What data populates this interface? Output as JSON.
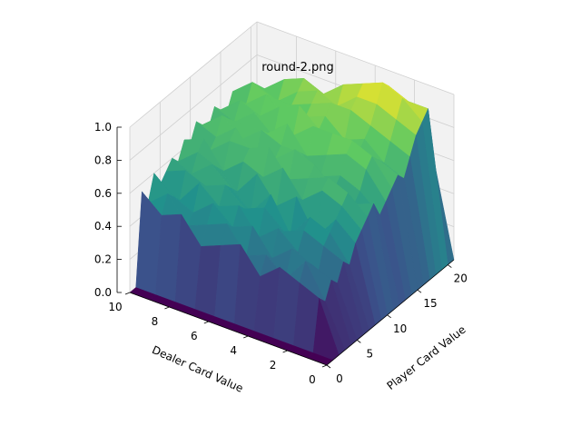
{
  "chart_data": {
    "type": "surface",
    "title": "round-2.png",
    "xlabel": "Player Card Value",
    "ylabel": "Dealer Card Value",
    "zlabel": "",
    "xlim": [
      0,
      21
    ],
    "ylim": [
      0,
      10
    ],
    "zlim": [
      0,
      1
    ],
    "x_ticks": [
      "0",
      "5",
      "10",
      "15",
      "20"
    ],
    "y_ticks": [
      "0",
      "2",
      "4",
      "6",
      "8",
      "10"
    ],
    "z_ticks": [
      "0.0",
      "0.2",
      "0.4",
      "0.6",
      "0.8",
      "1.0"
    ],
    "colormap": "viridis",
    "grid": true,
    "rows_dealer": [
      0,
      1,
      2,
      3,
      4,
      5,
      6,
      7,
      8,
      9,
      10
    ],
    "cols_player": [
      0,
      1,
      2,
      3,
      4,
      5,
      6,
      7,
      8,
      9,
      10,
      11,
      12,
      13,
      14,
      15,
      16,
      17,
      18,
      19,
      20,
      21
    ],
    "z": [
      [
        0,
        0,
        0,
        0,
        0,
        0,
        0,
        0,
        0,
        0,
        0,
        0,
        0,
        0,
        0,
        0,
        0,
        0,
        0,
        0,
        0,
        0
      ],
      [
        0,
        0,
        0.3,
        0.25,
        0.35,
        0.3,
        0.4,
        0.35,
        0.45,
        0.5,
        0.55,
        0.6,
        0.5,
        0.55,
        0.6,
        0.65,
        0.6,
        0.7,
        0.8,
        0.85,
        0.9,
        0.55
      ],
      [
        0,
        0,
        0.35,
        0.45,
        0.4,
        0.3,
        0.45,
        0.5,
        0.55,
        0.6,
        0.65,
        0.55,
        0.6,
        0.7,
        0.75,
        0.7,
        0.65,
        0.75,
        0.85,
        0.95,
        0.9,
        0.6
      ],
      [
        0,
        0,
        0.4,
        0.3,
        0.45,
        0.4,
        0.5,
        0.55,
        0.4,
        0.65,
        0.7,
        0.6,
        0.65,
        0.75,
        0.8,
        0.7,
        0.75,
        0.8,
        0.9,
        1.0,
        0.95,
        0.65
      ],
      [
        0,
        0,
        0.3,
        0.4,
        0.35,
        0.5,
        0.45,
        0.4,
        0.6,
        0.55,
        0.65,
        0.7,
        0.6,
        0.7,
        0.8,
        0.75,
        0.7,
        0.85,
        0.9,
        0.95,
        0.85,
        0.6
      ],
      [
        0,
        0,
        0.45,
        0.35,
        0.5,
        0.4,
        0.55,
        0.6,
        0.5,
        0.7,
        0.6,
        0.75,
        0.7,
        0.65,
        0.8,
        0.75,
        0.8,
        0.85,
        0.8,
        0.9,
        0.85,
        0.55
      ],
      [
        0,
        0,
        0.4,
        0.5,
        0.45,
        0.55,
        0.5,
        0.45,
        0.65,
        0.6,
        0.75,
        0.65,
        0.7,
        0.8,
        0.7,
        0.85,
        0.75,
        0.8,
        0.85,
        0.8,
        0.75,
        0.6
      ],
      [
        0,
        0,
        0.35,
        0.45,
        0.55,
        0.5,
        0.6,
        0.55,
        0.5,
        0.65,
        0.7,
        0.6,
        0.75,
        0.7,
        0.65,
        0.8,
        0.7,
        0.75,
        0.8,
        0.85,
        0.7,
        0.55
      ],
      [
        0,
        0,
        0.5,
        0.4,
        0.45,
        0.6,
        0.55,
        0.65,
        0.6,
        0.55,
        0.7,
        0.75,
        0.65,
        0.7,
        0.75,
        0.7,
        0.8,
        0.75,
        0.7,
        0.8,
        0.75,
        0.5
      ],
      [
        0,
        0,
        0.45,
        0.55,
        0.5,
        0.45,
        0.6,
        0.55,
        0.65,
        0.7,
        0.6,
        0.65,
        0.75,
        0.7,
        0.65,
        0.75,
        0.7,
        0.8,
        0.75,
        0.7,
        0.65,
        0.55
      ],
      [
        0,
        0,
        0.55,
        0.45,
        0.6,
        0.5,
        0.55,
        0.6,
        0.55,
        0.65,
        0.6,
        0.7,
        0.65,
        0.6,
        0.7,
        0.65,
        0.6,
        0.7,
        0.65,
        0.6,
        0.55,
        0.5
      ]
    ]
  }
}
